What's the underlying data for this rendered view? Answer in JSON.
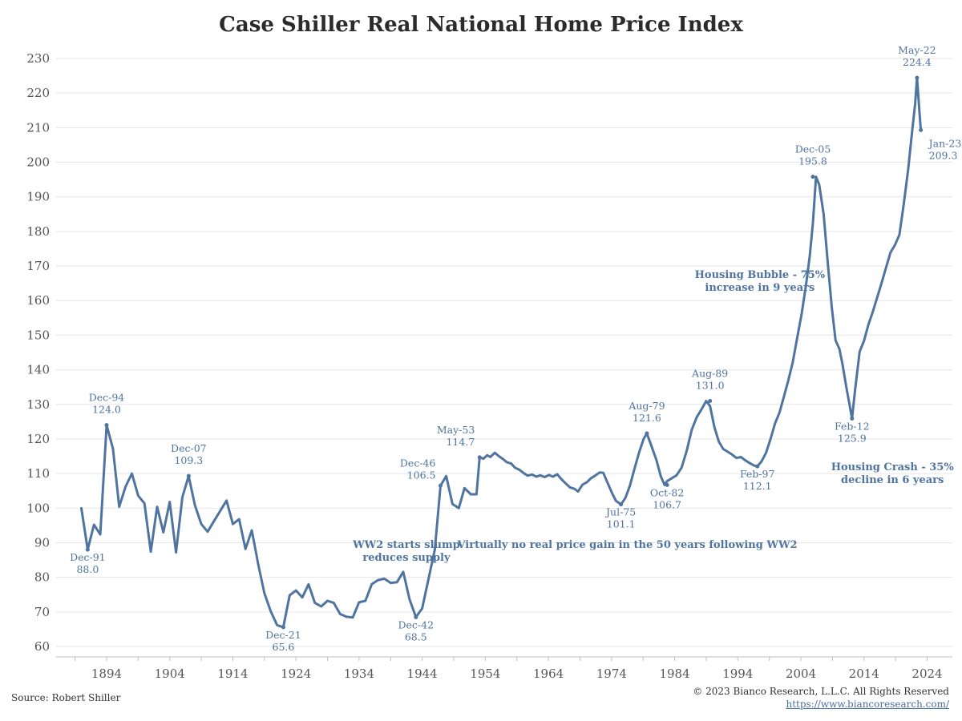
{
  "chart_data": {
    "type": "line",
    "title": "Case Shiller Real National Home Price Index",
    "xlabel": "",
    "ylabel": "",
    "xlim": [
      1886,
      2028
    ],
    "ylim": [
      57,
      233
    ],
    "yticks": [
      60,
      70,
      80,
      90,
      100,
      110,
      120,
      130,
      140,
      150,
      160,
      170,
      180,
      190,
      200,
      210,
      220,
      230
    ],
    "xticks": [
      1894,
      1904,
      1914,
      1924,
      1934,
      1944,
      1954,
      1964,
      1974,
      1984,
      1994,
      2004,
      2014,
      2024
    ],
    "grid": true,
    "line_color": "#4f74a0",
    "series": [
      {
        "x": [
          1890,
          1891,
          1892,
          1893,
          1894,
          1895,
          1896,
          1897,
          1898,
          1899,
          1900,
          1901,
          1902,
          1903,
          1904,
          1905,
          1906,
          1907,
          1908,
          1909,
          1910,
          1911,
          1913,
          1914,
          1915,
          1916,
          1917,
          1918,
          1919,
          1920,
          1921,
          1922,
          1923,
          1924,
          1925,
          1926,
          1927,
          1928,
          1929,
          1930,
          1931,
          1932,
          1933,
          1934,
          1935,
          1936,
          1937,
          1938,
          1939,
          1940,
          1941,
          1942,
          1943,
          1944,
          1945,
          1946,
          1946.9,
          1947.8,
          1948.8,
          1949.8,
          1950.7,
          1951.7,
          1952.6,
          1953.1,
          1953.7,
          1954.3,
          1954.8,
          1955.5,
          1956.1,
          1956.8,
          1957.4,
          1958.1,
          1958.7,
          1959.4,
          1960.1,
          1960.7,
          1961.4,
          1962.1,
          1962.7,
          1963.4,
          1964.1,
          1964.7,
          1965.4,
          1966.1,
          1966.7,
          1967.4,
          1968.1,
          1968.7,
          1969.4,
          1970.1,
          1970.7,
          1971.4,
          1972.1,
          1972.7,
          1973.4,
          1974.1,
          1974.7,
          1975.5,
          1976.2,
          1976.9,
          1977.6,
          1978.4,
          1979.1,
          1979.6,
          1980.4,
          1981.1,
          1981.8,
          1982.4,
          1982.8,
          1983.5,
          1984.3,
          1985.1,
          1985.9,
          1986.7,
          1987.5,
          1988.3,
          1989.0,
          1989.6,
          1990.3,
          1991.0,
          1991.7,
          1992.4,
          1993.1,
          1993.8,
          1994.5,
          1995.2,
          1995.9,
          1996.6,
          1997.1,
          1997.8,
          1998.5,
          1999.2,
          1999.9,
          2000.6,
          2001.3,
          2002.0,
          2002.7,
          2003.4,
          2004.1,
          2004.8,
          2005.4,
          2005.9,
          2006.4,
          2006.9,
          2007.6,
          2008.3,
          2008.9,
          2009.5,
          2010.1,
          2010.6,
          2011.2,
          2011.6,
          2012.1,
          2012.6,
          2013.3,
          2014.0,
          2014.7,
          2015.4,
          2016.1,
          2016.8,
          2017.5,
          2018.2,
          2018.9,
          2019.6,
          2020.3,
          2021.0,
          2021.6,
          2022.1,
          2022.4,
          2022.8,
          2023.0
        ],
        "values": [
          100.0,
          88.0,
          95.2,
          92.4,
          124.0,
          117.2,
          100.4,
          106.2,
          110.0,
          103.6,
          101.4,
          87.4,
          100.4,
          93.0,
          101.8,
          87.2,
          103.2,
          109.3,
          100.8,
          95.4,
          93.2,
          96.2,
          102.2,
          95.4,
          96.8,
          88.2,
          93.6,
          84.0,
          75.4,
          70.2,
          66.2,
          65.6,
          74.8,
          76.2,
          74.2,
          78.0,
          72.6,
          71.6,
          73.2,
          72.6,
          69.4,
          68.6,
          68.4,
          72.8,
          73.2,
          78.0,
          79.2,
          79.6,
          78.4,
          78.6,
          81.6,
          73.6,
          68.5,
          71.0,
          79.5,
          88.0,
          106.5,
          109.3,
          101.2,
          100.0,
          105.8,
          104.0,
          104.0,
          114.7,
          114.3,
          115.3,
          114.8,
          116.0,
          115.1,
          114.2,
          113.3,
          112.9,
          111.7,
          111.1,
          110.1,
          109.4,
          109.7,
          109.1,
          109.5,
          109.0,
          109.6,
          109.1,
          109.8,
          108.3,
          107.2,
          106.0,
          105.6,
          104.8,
          106.8,
          107.5,
          108.6,
          109.4,
          110.3,
          110.2,
          107.2,
          104.3,
          102.1,
          101.1,
          103.0,
          106.5,
          111.2,
          116.3,
          120.1,
          121.6,
          117.6,
          114.0,
          109.2,
          106.7,
          107.8,
          108.6,
          109.5,
          111.7,
          116.5,
          122.6,
          126.3,
          128.7,
          131.0,
          129.5,
          123.4,
          119.2,
          117.1,
          116.3,
          115.5,
          114.5,
          114.8,
          113.8,
          113.0,
          112.3,
          112.1,
          113.6,
          116.1,
          120.1,
          124.5,
          127.6,
          132.2,
          136.9,
          142.1,
          149.1,
          155.9,
          164.3,
          172.9,
          182.4,
          195.8,
          193.5,
          185.0,
          170.0,
          158.0,
          148.5,
          146.0,
          141.5,
          135.0,
          131.0,
          125.9,
          134.5,
          145.2,
          148.4,
          153.1,
          156.8,
          161.0,
          165.2,
          169.6,
          173.9,
          176.1,
          179.0,
          188.0,
          198.0,
          208.5,
          216.8,
          224.4,
          214.0,
          209.3
        ]
      }
    ],
    "annotations": [
      {
        "id": "dec91",
        "x": 1891,
        "y": 88.0,
        "date": "Dec-91",
        "value": "88.0",
        "pos": "below"
      },
      {
        "id": "dec94",
        "x": 1894,
        "y": 124.0,
        "date": "Dec-94",
        "value": "124.0",
        "pos": "above"
      },
      {
        "id": "dec07",
        "x": 1907,
        "y": 109.3,
        "date": "Dec-07",
        "value": "109.3",
        "pos": "above"
      },
      {
        "id": "dec21",
        "x": 1922,
        "y": 65.6,
        "date": "Dec-21",
        "value": "65.6",
        "pos": "below"
      },
      {
        "id": "dec42",
        "x": 1943,
        "y": 68.5,
        "date": "Dec-42",
        "value": "68.5",
        "pos": "below"
      },
      {
        "id": "dec46",
        "x": 1946.9,
        "y": 106.5,
        "date": "Dec-46",
        "value": "106.5",
        "pos": "left"
      },
      {
        "id": "may53",
        "x": 1953.1,
        "y": 114.7,
        "date": "May-53",
        "value": "114.7",
        "pos": "above-left"
      },
      {
        "id": "jul75",
        "x": 1975.5,
        "y": 101.1,
        "date": "Jul-75",
        "value": "101.1",
        "pos": "below"
      },
      {
        "id": "aug79",
        "x": 1979.6,
        "y": 121.6,
        "date": "Aug-79",
        "value": "121.6",
        "pos": "above"
      },
      {
        "id": "oct82",
        "x": 1982.8,
        "y": 106.7,
        "date": "Oct-82",
        "value": "106.7",
        "pos": "below"
      },
      {
        "id": "aug89",
        "x": 1989.6,
        "y": 131.0,
        "date": "Aug-89",
        "value": "131.0",
        "pos": "above"
      },
      {
        "id": "feb97",
        "x": 1997.1,
        "y": 112.1,
        "date": "Feb-97",
        "value": "112.1",
        "pos": "below"
      },
      {
        "id": "dec05",
        "x": 2005.9,
        "y": 195.8,
        "date": "Dec-05",
        "value": "195.8",
        "pos": "above"
      },
      {
        "id": "feb12",
        "x": 2012.1,
        "y": 125.9,
        "date": "Feb-12",
        "value": "125.9",
        "pos": "below"
      },
      {
        "id": "may22",
        "x": 2022.4,
        "y": 224.4,
        "date": "May-22",
        "value": "224.4",
        "pos": "above"
      },
      {
        "id": "jan23",
        "x": 2023.0,
        "y": 209.3,
        "date": "Jan-23",
        "value": "209.3",
        "pos": "right"
      }
    ],
    "notes": [
      {
        "id": "ww2",
        "x": 1941.5,
        "y": 88.5,
        "lines": [
          "WW2 starts slump",
          "reduces supply"
        ]
      },
      {
        "id": "flat",
        "x": 1976.5,
        "y": 88.5,
        "lines": [
          "Virtually no real price gain in the 50 years following WW2"
        ]
      },
      {
        "id": "bubble",
        "x": 1997.5,
        "y": 166.5,
        "lines": [
          "Housing Bubble - 75%",
          "increase in 9 years"
        ]
      },
      {
        "id": "crash",
        "x": 2018.5,
        "y": 111.0,
        "lines": [
          "Housing Crash - 35%",
          "decline in 6 years"
        ]
      }
    ]
  },
  "footer": {
    "source": "Source: Robert Shiller",
    "copyright": "© 2023 Bianco Research, L.L.C. All Rights Reserved",
    "link": "https://www.biancoresearch.com/"
  }
}
